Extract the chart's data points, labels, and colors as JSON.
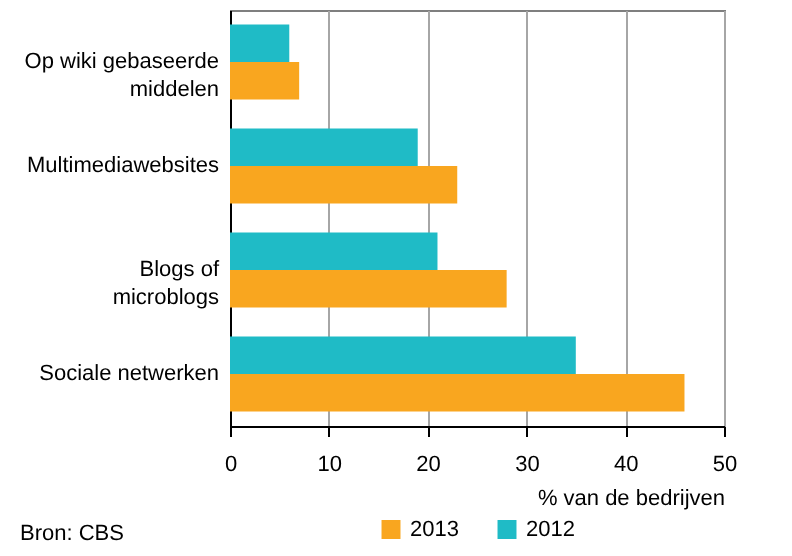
{
  "chart_data": {
    "type": "bar",
    "orientation": "horizontal",
    "categories": [
      "Op wiki gebaseerde middelen",
      "Multimediawebsites",
      "Blogs of microblogs",
      "Sociale netwerken"
    ],
    "series": [
      {
        "name": "2013",
        "color": "#f9a61f",
        "values": [
          7,
          23,
          28,
          46
        ]
      },
      {
        "name": "2012",
        "color": "#1fbbc6",
        "values": [
          6,
          19,
          21,
          35
        ]
      }
    ],
    "xlabel": "% van de bedrijven",
    "xlim": [
      0,
      50
    ],
    "xticks": [
      0,
      10,
      20,
      30,
      40,
      50
    ],
    "grid": "x",
    "legend": "bottom",
    "annotations": [
      "Bron: CBS"
    ]
  }
}
